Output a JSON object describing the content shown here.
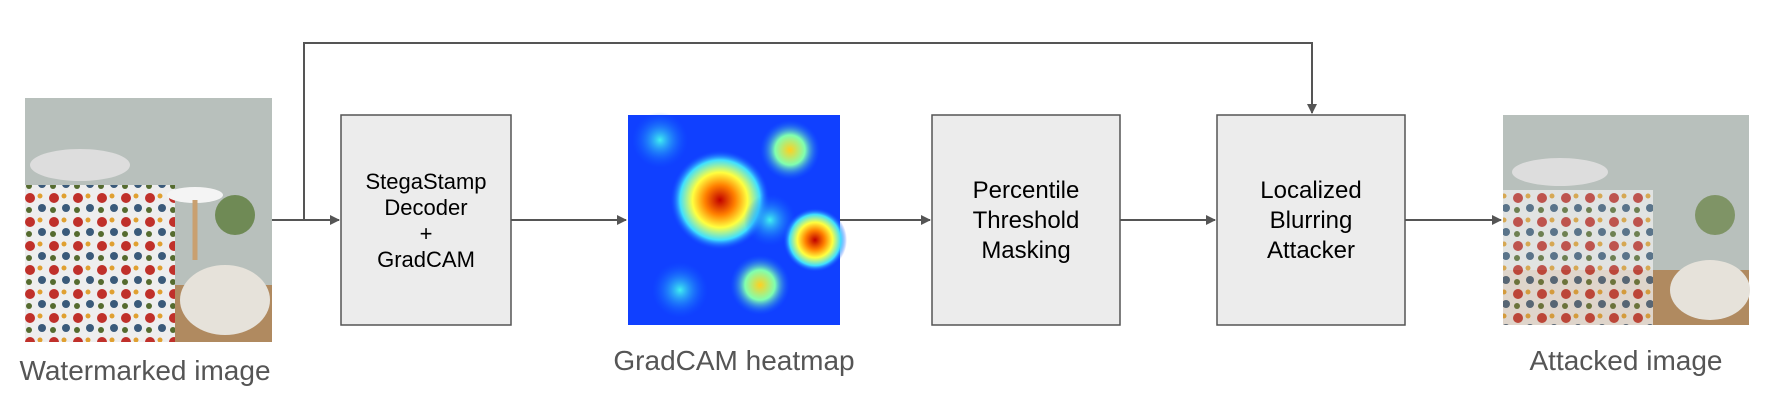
{
  "inputs": {
    "watermarked_label": "Watermarked image",
    "heatmap_label": "GradCAM heatmap",
    "attacked_label": "Attacked image"
  },
  "boxes": [
    {
      "lines": [
        "StegaStamp",
        "Decoder",
        "+",
        "GradCAM"
      ]
    },
    {
      "lines": [
        "Percentile",
        "Threshold",
        "Masking"
      ]
    },
    {
      "lines": [
        "Localized",
        "Blurring",
        "Attacker"
      ]
    }
  ]
}
